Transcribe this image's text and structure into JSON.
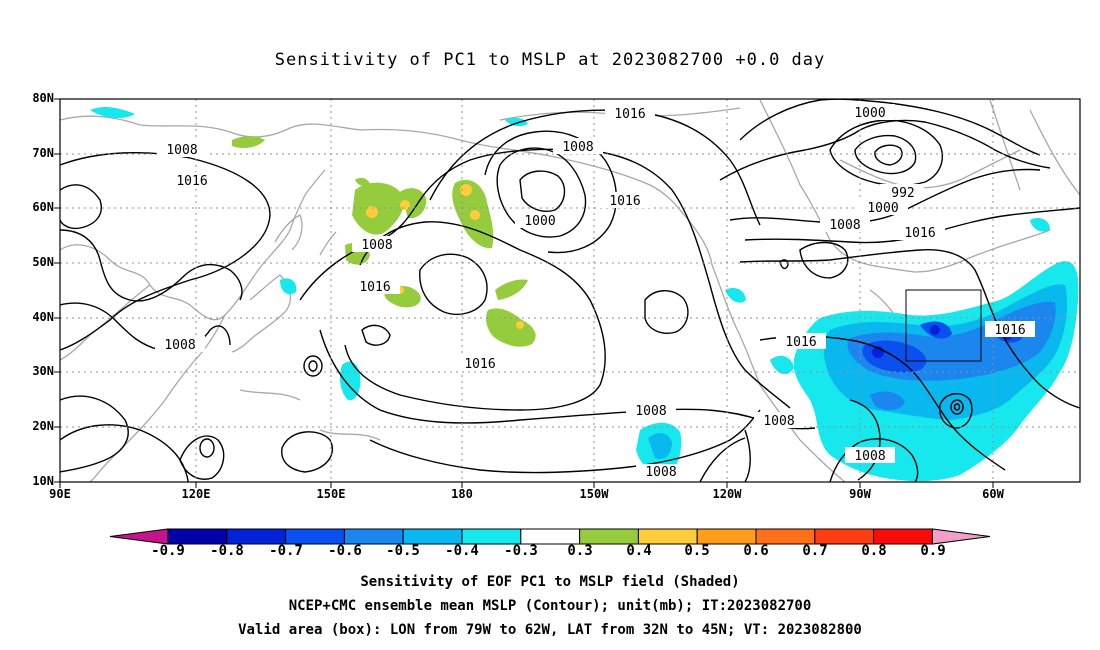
{
  "title": "Sensitivity of PC1 to MSLP at 2023082700 +0.0 day",
  "lat_labels": [
    "80N",
    "70N",
    "60N",
    "50N",
    "40N",
    "30N",
    "20N",
    "10N"
  ],
  "lon_labels": [
    "90E",
    "120E",
    "150E",
    "180",
    "150W",
    "120W",
    "90W",
    "60W"
  ],
  "contour_labels": [
    "1016",
    "1000",
    "1008",
    "1008",
    "1016",
    "1008",
    "1000",
    "992",
    "1008",
    "1016",
    "1000",
    "1008",
    "1016",
    "1016",
    "1016",
    "1016",
    "1016",
    "1008",
    "1008",
    "1008"
  ],
  "colorbar": {
    "labels": [
      "-0.9",
      "-0.8",
      "-0.7",
      "-0.6",
      "-0.5",
      "-0.4",
      "-0.3",
      "0.3",
      "0.4",
      "0.5",
      "0.6",
      "0.7",
      "0.8",
      "0.9"
    ],
    "colors": [
      "#0000a8",
      "#0022d8",
      "#0a50ee",
      "#1a86ee",
      "#0ab8f0",
      "#16e8ee",
      "#ffffff",
      "#94cc3e",
      "#ffcc3a",
      "#ff9e1a",
      "#ff7018",
      "#ff3c12",
      "#ff0a0a"
    ],
    "low_arrow_color": "#c8148c",
    "high_arrow_color": "#f0a0c8"
  },
  "captions": [
    "Sensitivity of EOF PC1 to MSLP field (Shaded)",
    "NCEP+CMC ensemble mean MSLP (Contour); unit(mb); IT:2023082700",
    "Valid area (box): LON from 79W to 62W, LAT from 32N to 45N; VT: 2023082800"
  ]
}
